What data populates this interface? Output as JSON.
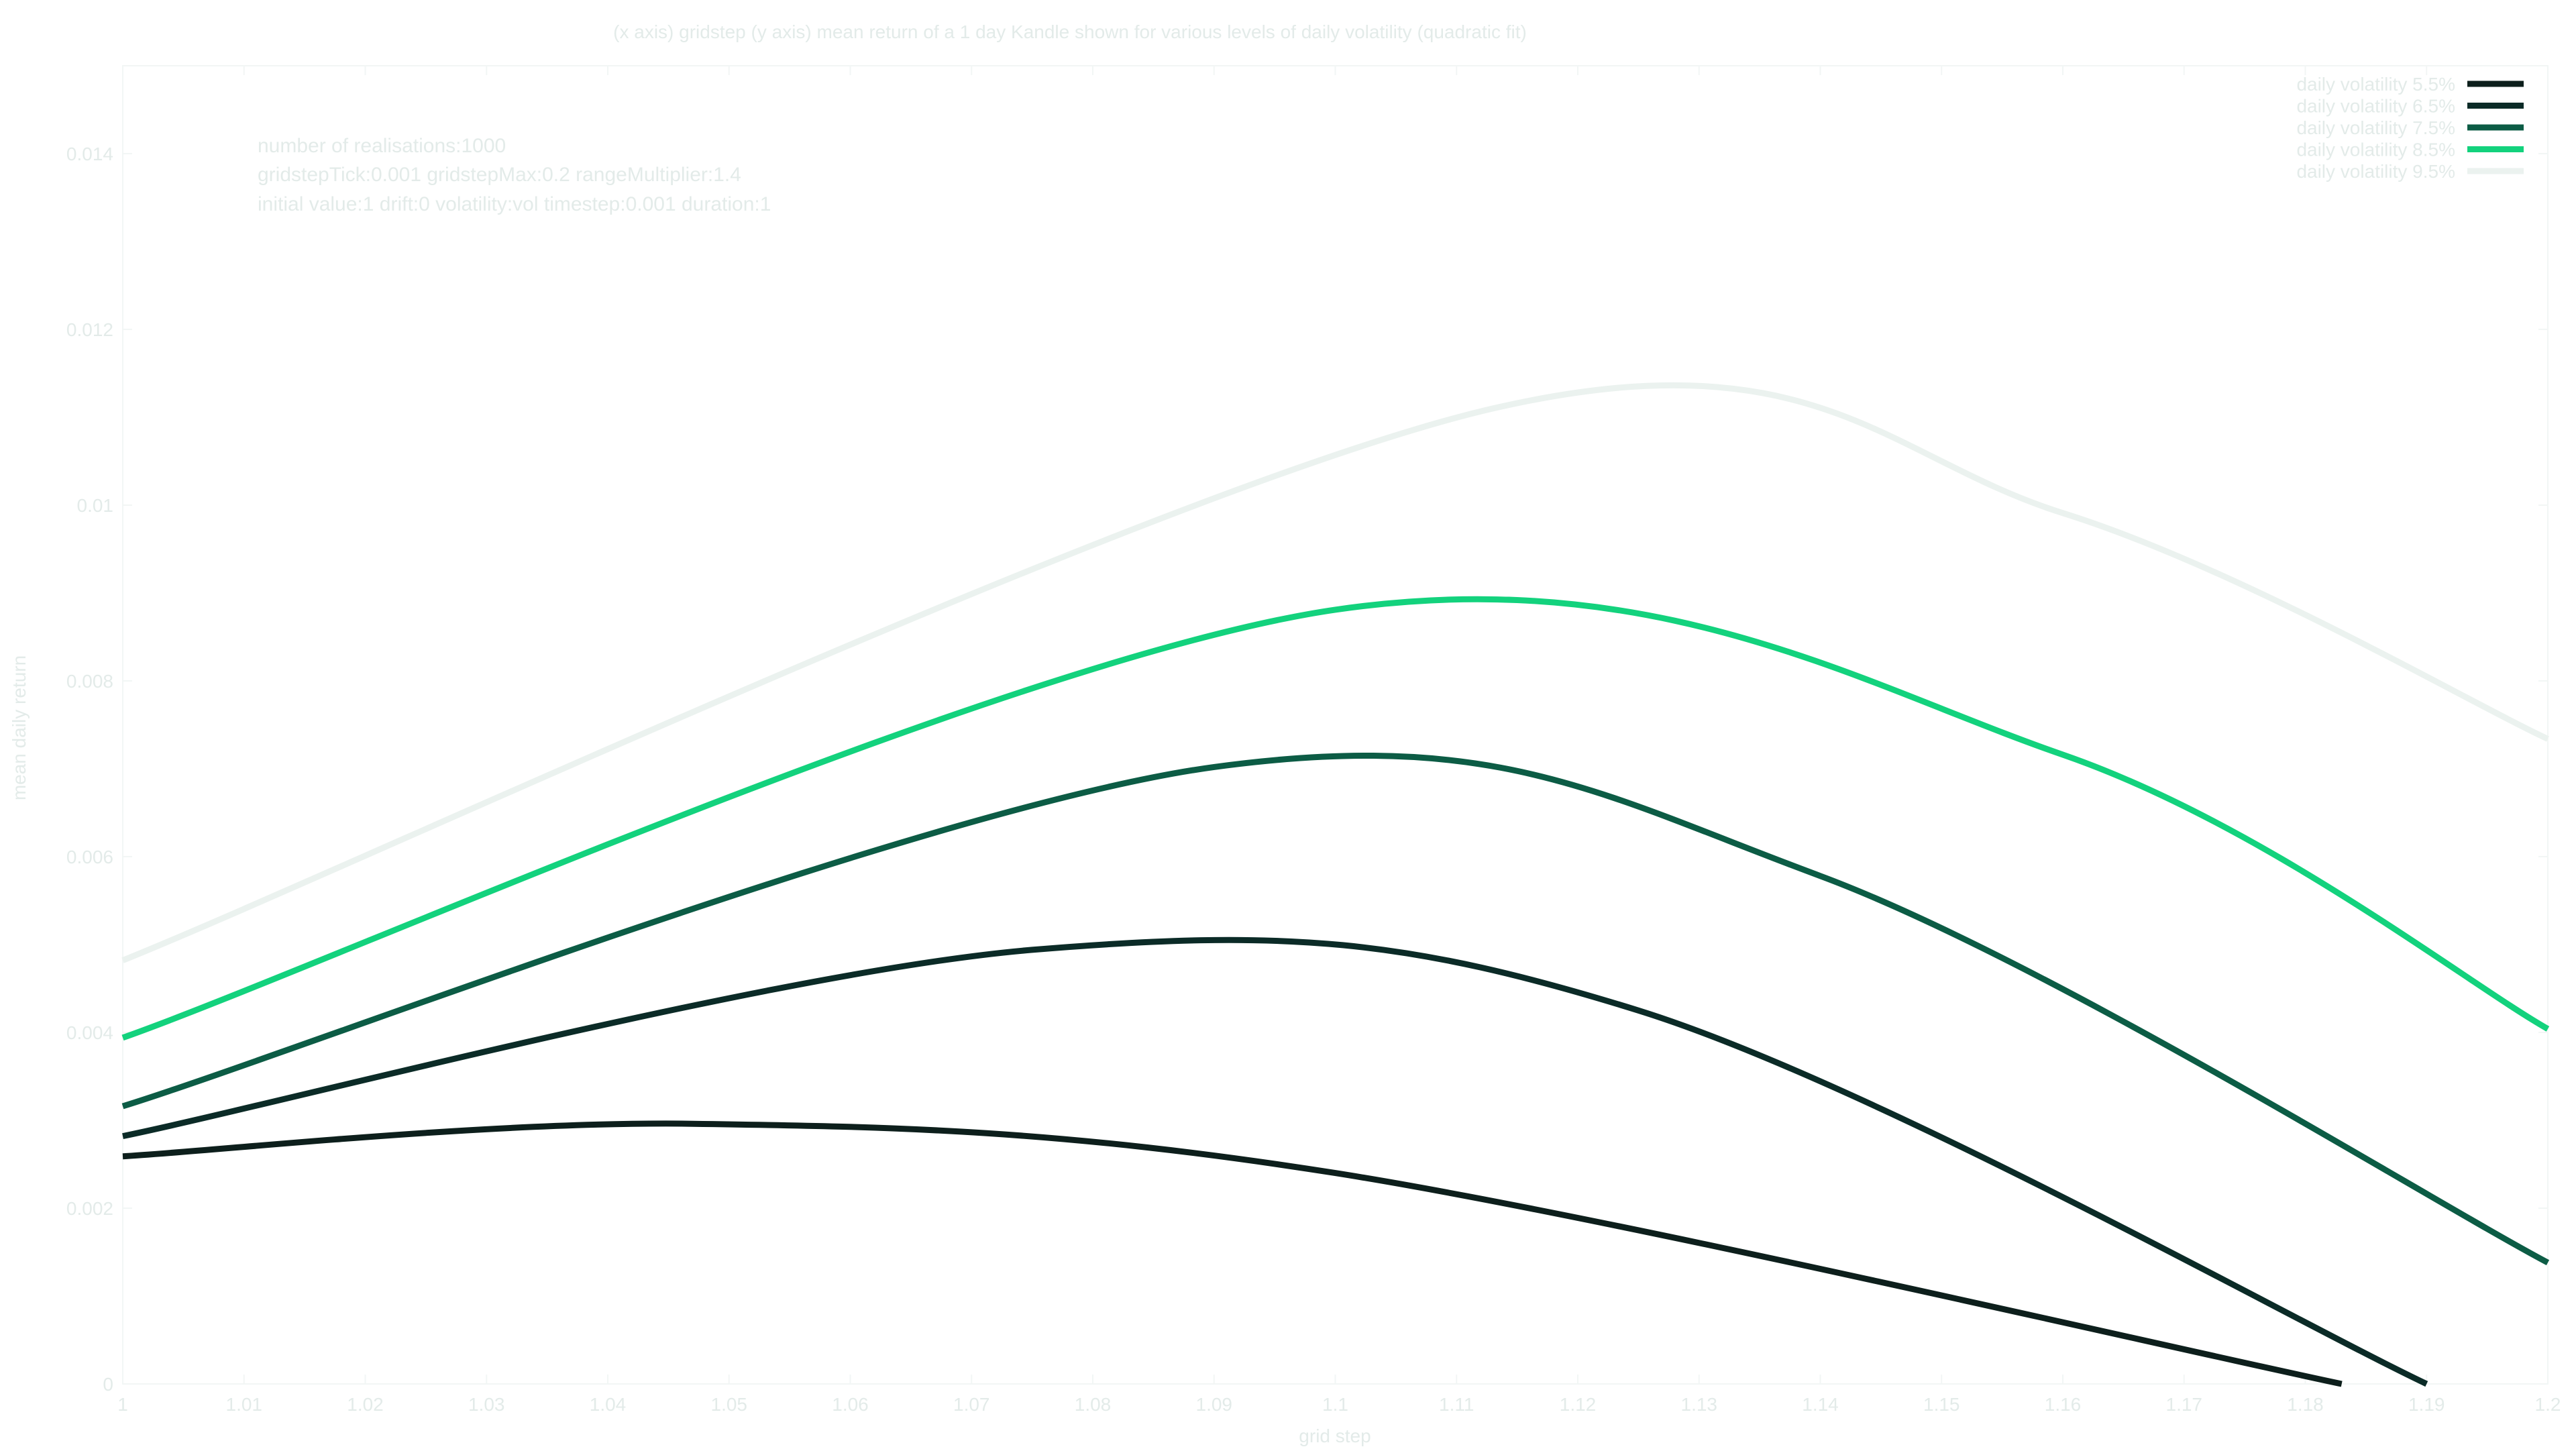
{
  "chart_data": {
    "type": "line",
    "title": "(x axis) gridstep  (y axis) mean return of a 1 day Kandle shown for various levels of daily volatility (quadratic fit)",
    "xlabel": "grid step",
    "ylabel": "mean daily return",
    "xlim": [
      1,
      1.2
    ],
    "ylim": [
      0,
      0.015
    ],
    "grid": false,
    "legend_position": "top-right",
    "x_ticks": [
      "1",
      "1.01",
      "1.02",
      "1.03",
      "1.04",
      "1.05",
      "1.06",
      "1.07",
      "1.08",
      "1.09",
      "1.1",
      "1.11",
      "1.12",
      "1.13",
      "1.14",
      "1.15",
      "1.16",
      "1.17",
      "1.18",
      "1.19",
      "1.2"
    ],
    "y_ticks": [
      "0",
      "0.002",
      "0.004",
      "0.006",
      "0.008",
      "0.01",
      "0.012",
      "0.014"
    ],
    "annotations": [
      "number of realisations:1000",
      "gridstepTick:0.001 gridstepMax:0.2 rangeMultiplier:1.4",
      "initial value:1  drift:0  volatility:vol timestep:0.001 duration:1"
    ],
    "series": [
      {
        "name": "daily volatility 5.5%",
        "color": "#0d1f1c",
        "x": [
          1,
          1.047,
          1.1,
          1.183
        ],
        "y": [
          0.00259,
          0.00296,
          0.0024,
          0.0
        ]
      },
      {
        "name": "daily volatility 6.5%",
        "color": "#0b2b27",
        "x": [
          1,
          1.075,
          1.125,
          1.19
        ],
        "y": [
          0.00282,
          0.00494,
          0.00425,
          0.0
        ]
      },
      {
        "name": "daily volatility 7.5%",
        "color": "#0c5c45",
        "x": [
          1,
          1.09,
          1.14,
          1.2
        ],
        "y": [
          0.00316,
          0.00702,
          0.00578,
          0.00138
        ]
      },
      {
        "name": "daily volatility 8.5%",
        "color": "#13d27d",
        "x": [
          1,
          1.1,
          1.16,
          1.2
        ],
        "y": [
          0.00394,
          0.00881,
          0.00716,
          0.00404
        ]
      },
      {
        "name": "daily volatility 9.5%",
        "color": "#ebf2ef",
        "x": [
          1,
          1.113,
          1.16,
          1.2
        ],
        "y": [
          0.00482,
          0.0111,
          0.00991,
          0.00734
        ]
      }
    ]
  }
}
